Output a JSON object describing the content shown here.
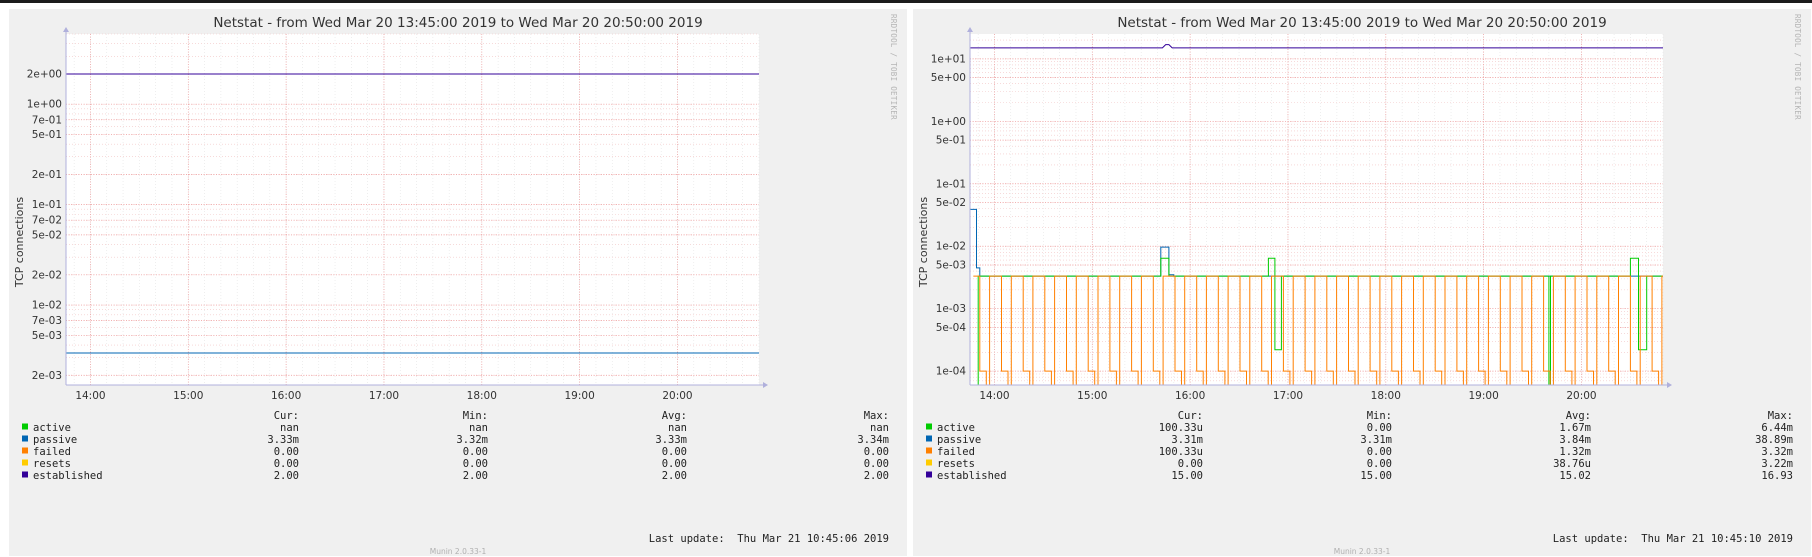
{
  "chart_data": [
    {
      "type": "line",
      "title": "Netstat - from Wed Mar 20 13:45:00 2019 to Wed Mar 20 20:50:00 2019",
      "ylabel": "TCP connections",
      "yscale": "log",
      "ylim": [
        0.0016,
        5.0
      ],
      "yticks": [
        {
          "label": "2e+00",
          "value": 2.0
        },
        {
          "label": "1e+00",
          "value": 1.0
        },
        {
          "label": "7e-01",
          "value": 0.7
        },
        {
          "label": "5e-01",
          "value": 0.5
        },
        {
          "label": "2e-01",
          "value": 0.2
        },
        {
          "label": "1e-01",
          "value": 0.1
        },
        {
          "label": "7e-02",
          "value": 0.07
        },
        {
          "label": "5e-02",
          "value": 0.05
        },
        {
          "label": "2e-02",
          "value": 0.02
        },
        {
          "label": "1e-02",
          "value": 0.01
        },
        {
          "label": "7e-03",
          "value": 0.007
        },
        {
          "label": "5e-03",
          "value": 0.005
        },
        {
          "label": "2e-03",
          "value": 0.002
        }
      ],
      "xlim": [
        "13:45",
        "20:50"
      ],
      "xticks": [
        "14:00",
        "15:00",
        "16:00",
        "17:00",
        "18:00",
        "19:00",
        "20:00"
      ],
      "grid": true,
      "watermark": "RRDTOOL / TOBI OETIKER",
      "series": [
        {
          "name": "active",
          "color": "#00cc00",
          "points": []
        },
        {
          "name": "passive",
          "color": "#0066b3",
          "points": [
            [
              "13:45",
              0.00333
            ],
            [
              "20:50",
              0.00333
            ]
          ]
        },
        {
          "name": "failed",
          "color": "#ff8000",
          "points": []
        },
        {
          "name": "resets",
          "color": "#ffcc00",
          "points": []
        },
        {
          "name": "established",
          "color": "#330099",
          "points": [
            [
              "13:45",
              2.0
            ],
            [
              "20:50",
              2.0
            ]
          ]
        }
      ],
      "legend": {
        "position": "bottom",
        "headers": {
          "cur": "Cur:",
          "min": "Min:",
          "avg": "Avg:",
          "max": "Max:"
        },
        "rows": [
          {
            "name": "active",
            "color": "#00cc00",
            "cur": "nan",
            "min": "nan",
            "avg": "nan",
            "max": "nan"
          },
          {
            "name": "passive",
            "color": "#0066b3",
            "cur": "3.33m",
            "min": "3.32m",
            "avg": "3.33m",
            "max": "3.34m"
          },
          {
            "name": "failed",
            "color": "#ff8000",
            "cur": "0.00",
            "min": "0.00",
            "avg": "0.00",
            "max": "0.00"
          },
          {
            "name": "resets",
            "color": "#ffcc00",
            "cur": "0.00",
            "min": "0.00",
            "avg": "0.00",
            "max": "0.00"
          },
          {
            "name": "established",
            "color": "#330099",
            "cur": "2.00",
            "min": "2.00",
            "avg": "2.00",
            "max": "2.00"
          }
        ]
      },
      "last_update": "Last update:  Thu Mar 21 10:45:06 2019",
      "footer": "Munin 2.0.33-1"
    },
    {
      "type": "line",
      "title": "Netstat - from Wed Mar 20 13:45:00 2019 to Wed Mar 20 20:50:00 2019",
      "ylabel": "TCP connections",
      "yscale": "log",
      "ylim": [
        6e-05,
        25.0
      ],
      "yticks": [
        {
          "label": "1e+01",
          "value": 10.0
        },
        {
          "label": "5e+00",
          "value": 5.0
        },
        {
          "label": "1e+00",
          "value": 1.0
        },
        {
          "label": "5e-01",
          "value": 0.5
        },
        {
          "label": "1e-01",
          "value": 0.1
        },
        {
          "label": "5e-02",
          "value": 0.05
        },
        {
          "label": "1e-02",
          "value": 0.01
        },
        {
          "label": "5e-03",
          "value": 0.005
        },
        {
          "label": "1e-03",
          "value": 0.001
        },
        {
          "label": "5e-04",
          "value": 0.0005
        },
        {
          "label": "1e-04",
          "value": 0.0001
        }
      ],
      "xlim": [
        "13:45",
        "20:50"
      ],
      "xticks": [
        "14:00",
        "15:00",
        "16:00",
        "17:00",
        "18:00",
        "19:00",
        "20:00"
      ],
      "grid": true,
      "watermark": "RRDTOOL / TOBI OETIKER",
      "series": [
        {
          "name": "established",
          "color": "#330099",
          "points": [
            [
              "13:45",
              15.0
            ],
            [
              "15:43",
              15.0
            ],
            [
              "15:45",
              16.9
            ],
            [
              "15:47",
              16.9
            ],
            [
              "15:49",
              15.0
            ],
            [
              "20:50",
              15.0
            ]
          ]
        },
        {
          "name": "passive",
          "color": "#0066b3",
          "points": [
            [
              "13:45",
              0.0389
            ],
            [
              "13:49",
              0.0389
            ],
            [
              "13:49",
              0.0045
            ],
            [
              "13:51",
              0.0045
            ],
            [
              "13:51",
              0.00333
            ],
            [
              "15:42",
              0.00333
            ],
            [
              "15:42",
              0.0097
            ],
            [
              "15:47",
              0.0097
            ],
            [
              "15:47",
              0.0035
            ],
            [
              "15:50",
              0.0035
            ],
            [
              "15:50",
              0.00333
            ],
            [
              "20:50",
              0.00333
            ]
          ]
        },
        {
          "name": "active",
          "color": "#00cc00",
          "points": [
            [
              "13:45",
              6e-05
            ],
            [
              "13:50",
              6e-05
            ],
            [
              "13:50",
              0.00333
            ],
            [
              "15:42",
              0.00333
            ],
            [
              "15:42",
              0.0064
            ],
            [
              "15:47",
              0.0064
            ],
            [
              "15:47",
              0.00333
            ],
            [
              "16:48",
              0.00333
            ],
            [
              "16:48",
              0.0064
            ],
            [
              "16:52",
              0.0064
            ],
            [
              "16:52",
              0.00022
            ],
            [
              "16:56",
              0.00022
            ],
            [
              "16:56",
              0.00333
            ],
            [
              "19:40",
              0.00333
            ],
            [
              "19:40",
              6e-05
            ],
            [
              "19:41",
              6e-05
            ],
            [
              "19:41",
              0.00333
            ],
            [
              "20:30",
              0.00333
            ],
            [
              "20:30",
              0.0064
            ],
            [
              "20:35",
              0.0064
            ],
            [
              "20:35",
              0.00022
            ],
            [
              "20:40",
              0.00022
            ],
            [
              "20:40",
              0.00333
            ],
            [
              "20:50",
              0.00333
            ]
          ]
        },
        {
          "name": "failed",
          "color": "#ff8000",
          "pattern": "oscillating",
          "high": 0.00333,
          "low": 0.0001,
          "floor": 6e-05,
          "period_minutes": 13.3,
          "points": [
            [
              "13:45",
              0.00333
            ],
            [
              "20:50",
              0.00333
            ]
          ]
        },
        {
          "name": "resets",
          "color": "#ffcc00",
          "points": [
            [
              "13:45",
              6e-05
            ],
            [
              "20:50",
              6e-05
            ]
          ]
        }
      ],
      "legend": {
        "position": "bottom",
        "headers": {
          "cur": "Cur:",
          "min": "Min:",
          "avg": "Avg:",
          "max": "Max:"
        },
        "rows": [
          {
            "name": "active",
            "color": "#00cc00",
            "cur": "100.33u",
            "min": "0.00",
            "avg": "1.67m",
            "max": "6.44m"
          },
          {
            "name": "passive",
            "color": "#0066b3",
            "cur": "3.31m",
            "min": "3.31m",
            "avg": "3.84m",
            "max": "38.89m"
          },
          {
            "name": "failed",
            "color": "#ff8000",
            "cur": "100.33u",
            "min": "0.00",
            "avg": "1.32m",
            "max": "3.32m"
          },
          {
            "name": "resets",
            "color": "#ffcc00",
            "cur": "0.00",
            "min": "0.00",
            "avg": "38.76u",
            "max": "3.22m"
          },
          {
            "name": "established",
            "color": "#330099",
            "cur": "15.00",
            "min": "15.00",
            "avg": "15.02",
            "max": "16.93"
          }
        ]
      },
      "last_update": "Last update:  Thu Mar 21 10:45:10 2019",
      "footer": "Munin 2.0.33-1"
    }
  ]
}
